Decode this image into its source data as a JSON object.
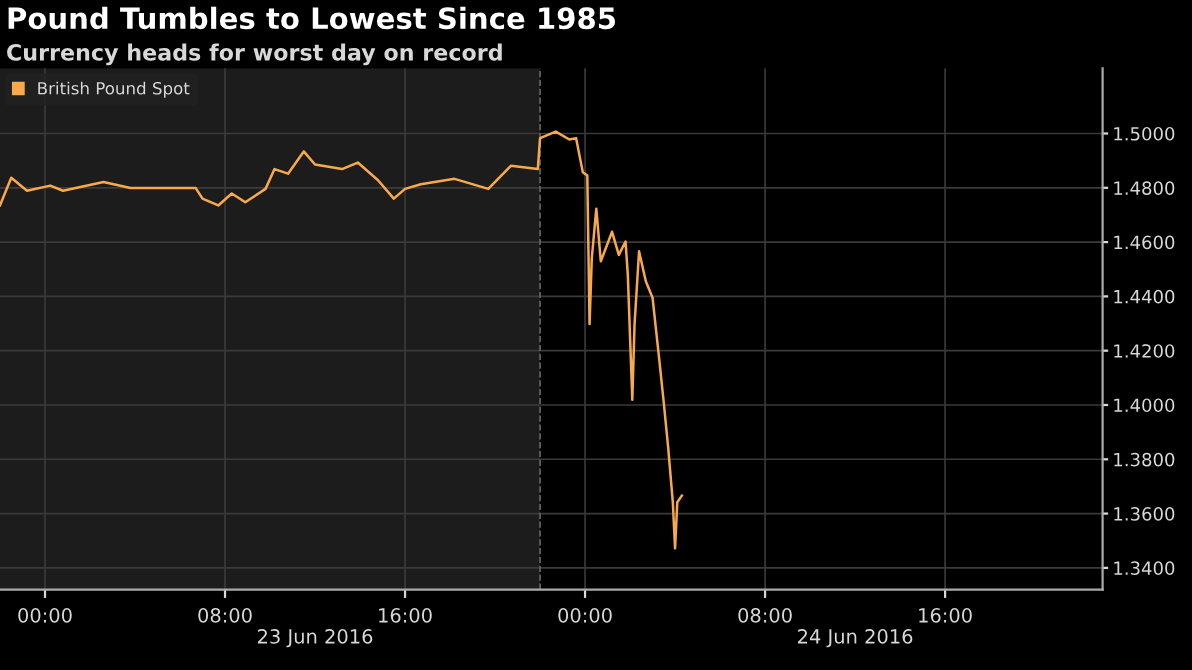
{
  "chart_data": {
    "type": "line",
    "title": "Pound Tumbles to Lowest Since 1985",
    "subtitle": "Currency heads for worst day on record",
    "x": [
      "2016-06-22T22:00",
      "2016-06-22T22:30",
      "2016-06-22T23:12",
      "2016-06-23T00:14",
      "2016-06-23T00:48",
      "2016-06-23T02:36",
      "2016-06-23T03:48",
      "2016-06-23T06:42",
      "2016-06-23T07:00",
      "2016-06-23T07:42",
      "2016-06-23T08:18",
      "2016-06-23T08:54",
      "2016-06-23T09:48",
      "2016-06-23T10:12",
      "2016-06-23T10:48",
      "2016-06-23T11:30",
      "2016-06-23T12:00",
      "2016-06-23T13:12",
      "2016-06-23T13:54",
      "2016-06-23T14:48",
      "2016-06-23T15:30",
      "2016-06-23T16:00",
      "2016-06-23T16:42",
      "2016-06-23T18:12",
      "2016-06-23T19:42",
      "2016-06-23T20:42",
      "2016-06-23T21:54",
      "2016-06-23T22:00",
      "2016-06-23T22:42",
      "2016-06-23T23:18",
      "2016-06-23T23:36",
      "2016-06-23T23:54",
      "2016-06-24T00:06",
      "2016-06-24T00:12",
      "2016-06-24T00:18",
      "2016-06-24T00:30",
      "2016-06-24T00:42",
      "2016-06-24T01:12",
      "2016-06-24T01:30",
      "2016-06-24T01:48",
      "2016-06-24T01:54",
      "2016-06-24T02:06",
      "2016-06-24T02:12",
      "2016-06-24T02:24",
      "2016-06-24T02:42",
      "2016-06-24T03:00",
      "2016-06-24T03:18",
      "2016-06-24T03:30",
      "2016-06-24T03:42",
      "2016-06-24T03:54",
      "2016-06-24T04:00",
      "2016-06-24T04:06",
      "2016-06-24T04:18"
    ],
    "series": [
      {
        "name": "British Pound Spot",
        "color": "#f7a94b",
        "values": [
          1.4735,
          1.4837,
          1.4789,
          1.4808,
          1.4789,
          1.4821,
          1.4799,
          1.4799,
          1.476,
          1.4735,
          1.4779,
          1.4747,
          1.4796,
          1.4869,
          1.4852,
          1.4934,
          1.4886,
          1.4869,
          1.4893,
          1.4828,
          1.476,
          1.4796,
          1.4813,
          1.4833,
          1.4796,
          1.4881,
          1.4869,
          1.4983,
          1.5007,
          1.4978,
          1.4983,
          1.4857,
          1.4845,
          1.4298,
          1.4541,
          1.4723,
          1.4529,
          1.4638,
          1.4553,
          1.4602,
          1.448,
          1.4019,
          1.4298,
          1.4566,
          1.4456,
          1.4395,
          1.4165,
          1.4007,
          1.3837,
          1.3642,
          1.3472,
          1.3642,
          1.3666
        ]
      }
    ],
    "xlim": [
      "2016-06-22T22:00",
      "2016-06-24T23:00"
    ],
    "xticks": [
      {
        "value": "2016-06-23T00:00",
        "label": "00:00"
      },
      {
        "value": "2016-06-23T08:00",
        "label": "08:00"
      },
      {
        "value": "2016-06-23T16:00",
        "label": "16:00"
      },
      {
        "value": "2016-06-24T00:00",
        "label": "00:00"
      },
      {
        "value": "2016-06-24T08:00",
        "label": "08:00"
      },
      {
        "value": "2016-06-24T16:00",
        "label": "16:00"
      }
    ],
    "ylim": [
      1.332,
      1.524
    ],
    "yticks": [
      {
        "value": 1.34,
        "label": "1.3400"
      },
      {
        "value": 1.36,
        "label": "1.3600"
      },
      {
        "value": 1.38,
        "label": "1.3800"
      },
      {
        "value": 1.4,
        "label": "1.4000"
      },
      {
        "value": 1.42,
        "label": "1.4200"
      },
      {
        "value": 1.44,
        "label": "1.4400"
      },
      {
        "value": 1.46,
        "label": "1.4600"
      },
      {
        "value": 1.48,
        "label": "1.4800"
      },
      {
        "value": 1.5,
        "label": "1.5000"
      }
    ],
    "bands": [
      {
        "axis": "x",
        "from": "2016-06-22T22:00",
        "to": "2016-06-23T22:00",
        "color": "#1c1c1c"
      }
    ],
    "ref_lines": [
      {
        "axis": "x",
        "value": "2016-06-23T22:00",
        "color": "#666666",
        "line_style": "dashed"
      }
    ],
    "annotations": [
      "23 Jun 2016",
      "24 Jun 2016"
    ],
    "grid": true,
    "legend": "top left",
    "line_style": "solid",
    "marker": "none"
  }
}
